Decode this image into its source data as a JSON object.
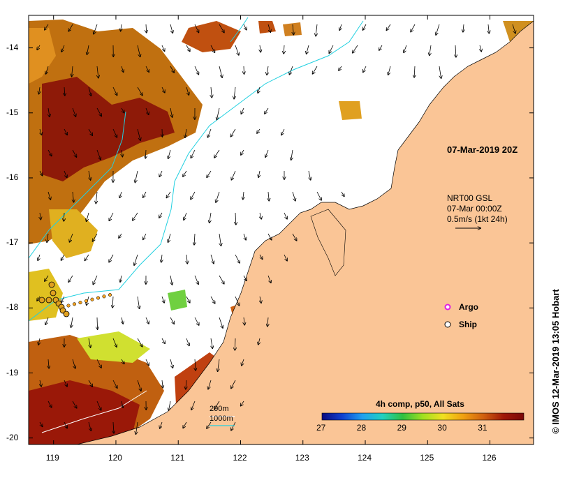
{
  "map": {
    "timestamp_label": "07-Mar-2019 20Z",
    "current_source": "NRT00 GSL",
    "current_time": "07-Mar 00:00Z",
    "current_scale": "0.5m/s (1kt 24h)",
    "credit": "© IMOS 12-Mar-2019 13:05 Hobart",
    "lon_range": [
      118.6,
      126.7
    ],
    "lat_range": [
      -20.1,
      -13.5
    ],
    "lon_ticks": [
      "119",
      "120",
      "121",
      "122",
      "123",
      "124",
      "125",
      "126"
    ],
    "lat_ticks": [
      "-14",
      "-15",
      "-16",
      "-17",
      "-18",
      "-19",
      "-20"
    ],
    "legend": {
      "argo_label": "Argo",
      "ship_label": "Ship",
      "argo_color": "#e020e0",
      "ship_color": "#000000"
    },
    "isobaths": {
      "shallow_label": "200m",
      "deep_label": "1000m",
      "shallow_color": "#ffffff",
      "deep_color": "#20d0e0"
    },
    "colorbar": {
      "title": "4h comp, p50, All Sats",
      "ticks": [
        "27",
        "28",
        "29",
        "30",
        "31"
      ],
      "min": 27,
      "max": 32,
      "colors": [
        "#0a0a80",
        "#1040d0",
        "#20a0f0",
        "#20d0c0",
        "#30c040",
        "#a0e020",
        "#f0e020",
        "#f0a010",
        "#d06010",
        "#a01808",
        "#7a0808"
      ]
    },
    "land_color": "#fac596"
  }
}
